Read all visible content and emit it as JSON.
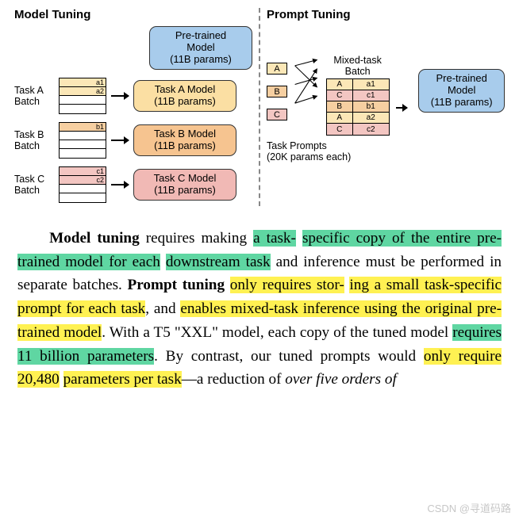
{
  "colors": {
    "blue": "#a8ccec",
    "yellow": "#fbdfa3",
    "orange": "#f6c490",
    "red": "#f1b9b5",
    "hl_green": "#5fd6a2",
    "hl_yellow": "#fff152"
  },
  "left": {
    "title": "Model Tuning",
    "pretrained": "Pre-trained\nModel\n(11B params)",
    "tasks": [
      {
        "batch_label": "Task A\nBatch",
        "cells": [
          "a1",
          "a2",
          "",
          ""
        ],
        "cell_class": "cell-y",
        "box": "Task A Model\n(11B params)",
        "box_class": "box-yellow"
      },
      {
        "batch_label": "Task B\nBatch",
        "cells": [
          "b1",
          "",
          "",
          ""
        ],
        "cell_class": "cell-o",
        "box": "Task B Model\n(11B params)",
        "box_class": "box-orange"
      },
      {
        "batch_label": "Task C\nBatch",
        "cells": [
          "c1",
          "c2",
          "",
          ""
        ],
        "cell_class": "cell-r",
        "box": "Task C Model\n(11B params)",
        "box_class": "box-red"
      }
    ]
  },
  "right": {
    "title": "Prompt Tuning",
    "mixed_label": "Mixed-task\nBatch",
    "prompts": [
      {
        "label": "A",
        "class": "cell-y"
      },
      {
        "label": "B",
        "class": "cell-o"
      },
      {
        "label": "C",
        "class": "cell-r"
      }
    ],
    "mixed_rows": [
      {
        "t": "A",
        "t_class": "cell-y",
        "v": "a1",
        "v_class": "cell-y"
      },
      {
        "t": "C",
        "t_class": "cell-r",
        "v": "c1",
        "v_class": "cell-r"
      },
      {
        "t": "B",
        "t_class": "cell-o",
        "v": "b1",
        "v_class": "cell-o"
      },
      {
        "t": "A",
        "t_class": "cell-y",
        "v": "a2",
        "v_class": "cell-y"
      },
      {
        "t": "C",
        "t_class": "cell-r",
        "v": "c2",
        "v_class": "cell-r"
      }
    ],
    "pretrained": "Pre-trained\nModel\n(11B params)",
    "task_prompts_label": "Task Prompts\n(20K params each)"
  },
  "para": {
    "s1a": "Model tuning",
    "s1b": " requires making ",
    "s1c": "a task-",
    "s1d": "specific copy of the entire pre-trained model for each",
    "s1e": "downstream task",
    "s1f": " and inference must be performed in separate batches.  ",
    "s2a": "Prompt tuning",
    "s2b": " ",
    "s2c": "only requires stor-",
    "s2d": "ing a small task-specific prompt for each task",
    "s2e": ", and ",
    "s2f": "enables mixed-task inference using the original pre-",
    "s2g": "trained model",
    "s2h": ".  With a T5 \"XXL\" model, each copy of the tuned model ",
    "s2i": "requires 11 billion parameters",
    "s2j": ". By contrast, our tuned prompts would ",
    "s2k": "only require 20,480",
    "s2l": "parameters per task",
    "s2m": "—a reduction of ",
    "s2n": "over five orders of"
  },
  "watermark": "CSDN @寻道码路"
}
